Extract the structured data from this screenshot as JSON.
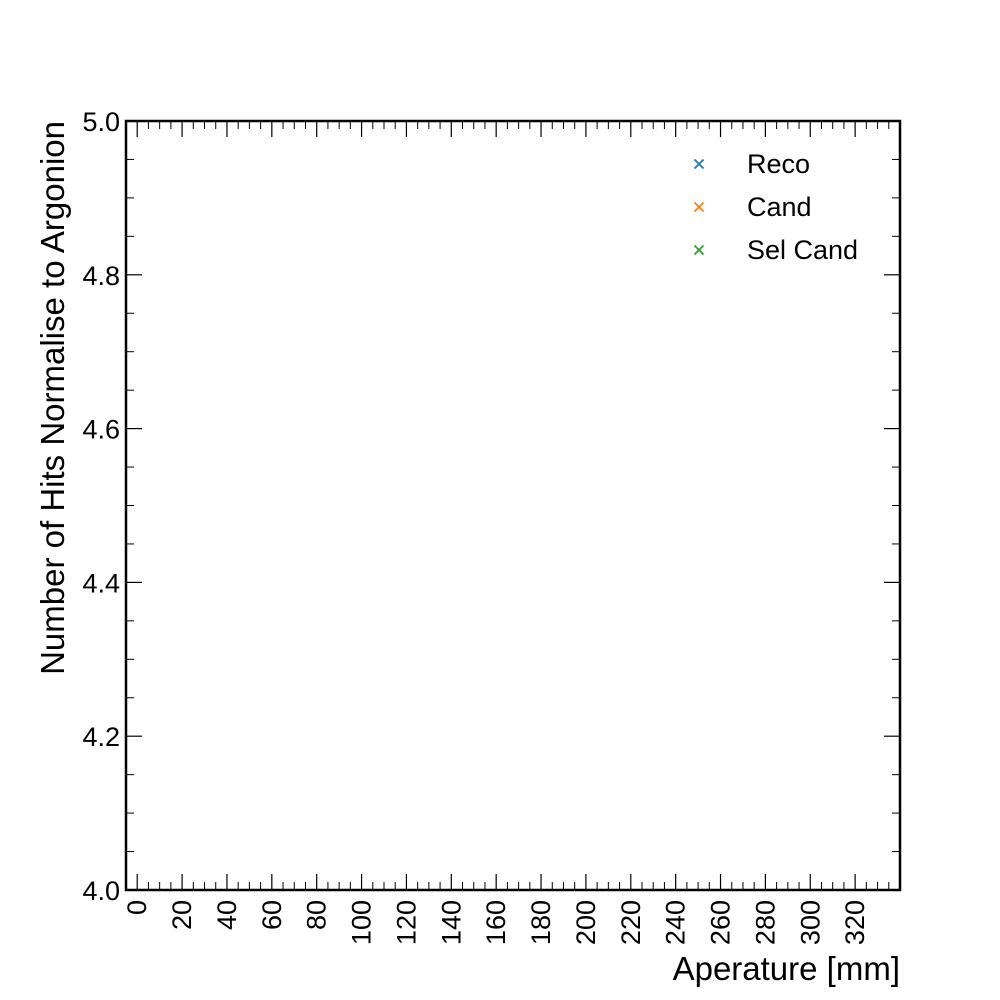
{
  "chart_data": {
    "type": "scatter",
    "title": "",
    "xlabel": "Aperature [mm]",
    "ylabel": "Number of Hits Normalise to Argonion",
    "xlim": [
      -5,
      340
    ],
    "ylim": [
      4.0,
      5.0
    ],
    "xticks": [
      0,
      20,
      40,
      60,
      80,
      100,
      120,
      140,
      160,
      180,
      200,
      220,
      240,
      260,
      280,
      300,
      320
    ],
    "yticks": [
      4.0,
      4.2,
      4.4,
      4.6,
      4.8,
      5.0
    ],
    "ytick_labels": [
      "4.0",
      "4.2",
      "4.4",
      "4.6",
      "4.8",
      "5.0"
    ],
    "grid": false,
    "legend_position": "top-right",
    "marker": "x",
    "series": [
      {
        "name": "Reco",
        "color": "#1f77b4",
        "x": [],
        "y": []
      },
      {
        "name": "Cand",
        "color": "#ff7f0e",
        "x": [],
        "y": []
      },
      {
        "name": "Sel Cand",
        "color": "#2ca02c",
        "x": [],
        "y": []
      }
    ]
  }
}
